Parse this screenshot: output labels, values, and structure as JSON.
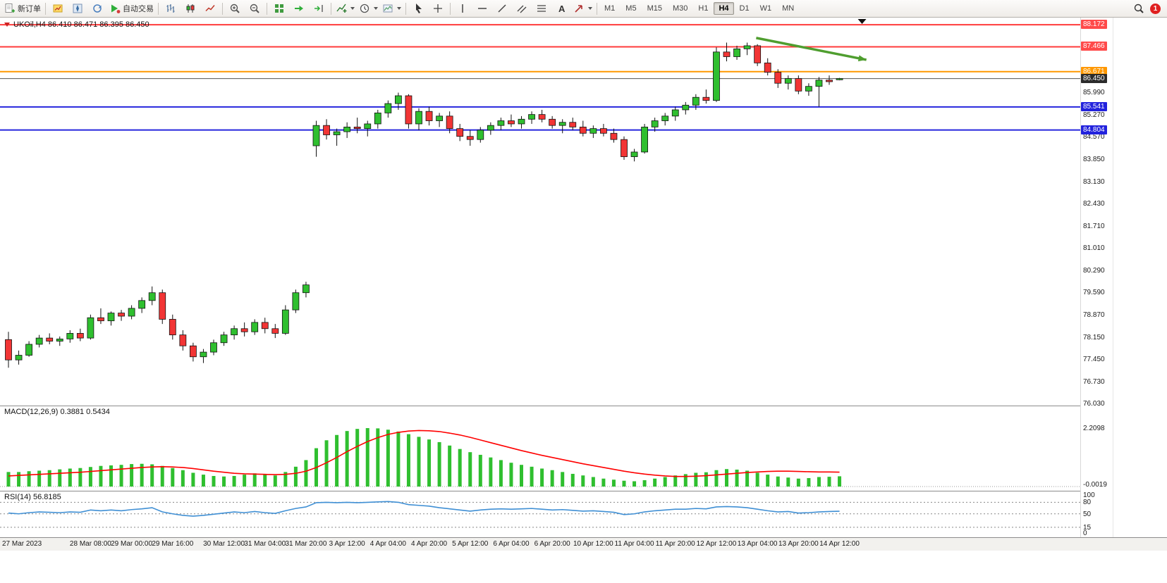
{
  "toolbar": {
    "new_order_label": "新订单",
    "auto_trading_label": "自动交易",
    "notification_count": "1",
    "timeframes": {
      "items": [
        "M1",
        "M5",
        "M15",
        "M30",
        "H1",
        "H4",
        "D1",
        "W1",
        "MN"
      ],
      "active": "H4"
    },
    "icons": {
      "new_order": "document-plus",
      "market_watch": "yellow-chart-box",
      "navigator": "compass-box",
      "refresh": "circle-arrow",
      "auto_trading": "green-play-triangle",
      "bar_chart": "hilo-bars",
      "candlestick_chart": "two-candles",
      "line_chart": "zigzag-line",
      "zoom_in": "magnifier-plus",
      "zoom_out": "magnifier-minus",
      "tile_windows": "green-grid-2x2",
      "auto_scroll": "green-right-arrow",
      "chart_shift": "green-arrow-to-bar",
      "indicators": "green-plus-over-line",
      "periods": "clock",
      "templates": "picture",
      "cursor": "pointer-arrow",
      "crosshair": "plus-cross",
      "vertical_line": "v-line",
      "horizontal_line": "h-line",
      "trendline": "diagonal-line",
      "equidistant_channel": "double-diagonal",
      "fibonacci": "stacked-lines",
      "text": "letter-A",
      "arrows": "red-arrow",
      "search": "magnifier"
    }
  },
  "chart": {
    "title": "UKOil,H4 86.410 86.471 86.395 86.450",
    "symbol": "UKOil",
    "period": "H4",
    "ohlc": {
      "open": "86.410",
      "high": "86.471",
      "low": "86.395",
      "close": "86.450"
    }
  },
  "macd": {
    "title": "MACD(12,26,9) 0.3881 0.5434",
    "axis_max": "2.2098",
    "axis_min": "-0.0019"
  },
  "rsi": {
    "title": "RSI(14) 56.8185",
    "axis_ticks": [
      "100",
      "80",
      "50",
      "15",
      "0"
    ]
  },
  "chart_data": {
    "type": "candlestick",
    "symbol": "UKOil",
    "timeframe": "H4",
    "ylim": [
      75.99,
      88.4
    ],
    "colors": {
      "bull": "#2fbf2f",
      "bear": "#f23535",
      "macd_hist": "#2fbf2f",
      "macd_signal": "#ff0000",
      "rsi_line": "#3f8fd4",
      "wick": "#111111",
      "annotation_arrow": "#4f9e2f"
    },
    "price_axis_ticks": [
      "85.990",
      "85.270",
      "84.570",
      "83.850",
      "83.130",
      "82.430",
      "81.710",
      "81.010",
      "80.290",
      "79.590",
      "78.870",
      "78.150",
      "77.450",
      "76.730",
      "76.030"
    ],
    "level_lines": [
      {
        "price": 88.172,
        "label": "88.172",
        "color": "#ff3b3b",
        "badge_color": "#ff4a4a",
        "width": 2
      },
      {
        "price": 87.466,
        "label": "87.466",
        "color": "#ff3b3b",
        "badge_color": "#ff4a4a",
        "width": 2
      },
      {
        "price": 86.671,
        "label": "86.671",
        "color": "#ff9800",
        "badge_color": "#ff9800",
        "width": 2
      },
      {
        "price": 86.45,
        "label": "86.450",
        "color": "#555555",
        "badge_color": "#2b2b2b",
        "width": 1
      },
      {
        "price": 85.541,
        "label": "85.541",
        "color": "#2626dd",
        "badge_color": "#2222dd",
        "width": 2
      },
      {
        "price": 84.804,
        "label": "84.804",
        "color": "#2626dd",
        "badge_color": "#2222dd",
        "width": 2
      }
    ],
    "x_labels": [
      {
        "i": 0,
        "t": "27 Mar 2023"
      },
      {
        "i": 8,
        "t": "28 Mar 08:00"
      },
      {
        "i": 12,
        "t": "29 Mar 00:00"
      },
      {
        "i": 16,
        "t": "29 Mar 16:00"
      },
      {
        "i": 21,
        "t": "30 Mar 12:00"
      },
      {
        "i": 25,
        "t": "31 Mar 04:00"
      },
      {
        "i": 29,
        "t": "31 Mar 20:00"
      },
      {
        "i": 33,
        "t": "3 Apr 12:00"
      },
      {
        "i": 37,
        "t": "4 Apr 04:00"
      },
      {
        "i": 41,
        "t": "4 Apr 20:00"
      },
      {
        "i": 45,
        "t": "5 Apr 12:00"
      },
      {
        "i": 49,
        "t": "6 Apr 04:00"
      },
      {
        "i": 53,
        "t": "6 Apr 20:00"
      },
      {
        "i": 57,
        "t": "10 Apr 12:00"
      },
      {
        "i": 61,
        "t": "11 Apr 04:00"
      },
      {
        "i": 65,
        "t": "11 Apr 20:00"
      },
      {
        "i": 69,
        "t": "12 Apr 12:00"
      },
      {
        "i": 73,
        "t": "13 Apr 04:00"
      },
      {
        "i": 77,
        "t": "13 Apr 20:00"
      },
      {
        "i": 81,
        "t": "14 Apr 12:00"
      }
    ],
    "candles": [
      [
        78.1,
        78.35,
        77.2,
        77.45
      ],
      [
        77.45,
        77.75,
        77.3,
        77.6
      ],
      [
        77.6,
        78.05,
        77.55,
        77.95
      ],
      [
        77.95,
        78.25,
        77.85,
        78.15
      ],
      [
        78.15,
        78.3,
        77.95,
        78.05
      ],
      [
        78.05,
        78.2,
        77.9,
        78.12
      ],
      [
        78.12,
        78.4,
        78.0,
        78.3
      ],
      [
        78.3,
        78.45,
        78.05,
        78.15
      ],
      [
        78.15,
        78.9,
        78.1,
        78.8
      ],
      [
        78.8,
        79.1,
        78.6,
        78.7
      ],
      [
        78.7,
        79.0,
        78.55,
        78.95
      ],
      [
        78.95,
        79.05,
        78.7,
        78.85
      ],
      [
        78.85,
        79.2,
        78.75,
        79.1
      ],
      [
        79.1,
        79.45,
        78.95,
        79.35
      ],
      [
        79.35,
        79.8,
        79.2,
        79.6
      ],
      [
        79.6,
        79.7,
        78.6,
        78.75
      ],
      [
        78.75,
        78.9,
        78.1,
        78.25
      ],
      [
        78.25,
        78.4,
        77.75,
        77.9
      ],
      [
        77.9,
        78.0,
        77.4,
        77.55
      ],
      [
        77.55,
        77.8,
        77.35,
        77.7
      ],
      [
        77.7,
        78.1,
        77.6,
        78.0
      ],
      [
        78.0,
        78.35,
        77.9,
        78.25
      ],
      [
        78.25,
        78.55,
        78.1,
        78.45
      ],
      [
        78.45,
        78.65,
        78.2,
        78.35
      ],
      [
        78.35,
        78.75,
        78.25,
        78.65
      ],
      [
        78.65,
        78.8,
        78.3,
        78.45
      ],
      [
        78.45,
        78.6,
        78.15,
        78.3
      ],
      [
        78.3,
        79.2,
        78.25,
        79.05
      ],
      [
        79.05,
        79.7,
        78.95,
        79.6
      ],
      [
        79.6,
        79.95,
        79.45,
        79.85
      ],
      [
        84.3,
        85.1,
        83.95,
        84.95
      ],
      [
        84.95,
        85.15,
        84.5,
        84.65
      ],
      [
        84.65,
        84.85,
        84.3,
        84.75
      ],
      [
        84.75,
        85.05,
        84.55,
        84.9
      ],
      [
        84.9,
        85.2,
        84.7,
        84.85
      ],
      [
        84.85,
        85.1,
        84.6,
        85.0
      ],
      [
        85.0,
        85.45,
        84.85,
        85.35
      ],
      [
        85.35,
        85.75,
        85.2,
        85.65
      ],
      [
        85.65,
        86.0,
        85.45,
        85.9
      ],
      [
        85.9,
        85.95,
        84.85,
        85.0
      ],
      [
        85.0,
        85.5,
        84.8,
        85.4
      ],
      [
        85.4,
        85.55,
        84.95,
        85.1
      ],
      [
        85.1,
        85.35,
        84.9,
        85.25
      ],
      [
        85.25,
        85.4,
        84.7,
        84.85
      ],
      [
        84.85,
        85.0,
        84.45,
        84.6
      ],
      [
        84.6,
        84.8,
        84.3,
        84.5
      ],
      [
        84.5,
        84.9,
        84.4,
        84.8
      ],
      [
        84.8,
        85.05,
        84.65,
        84.95
      ],
      [
        84.95,
        85.2,
        84.8,
        85.1
      ],
      [
        85.1,
        85.3,
        84.9,
        85.0
      ],
      [
        85.0,
        85.25,
        84.85,
        85.15
      ],
      [
        85.15,
        85.4,
        85.0,
        85.3
      ],
      [
        85.3,
        85.45,
        85.05,
        85.15
      ],
      [
        85.15,
        85.25,
        84.85,
        84.95
      ],
      [
        84.95,
        85.15,
        84.7,
        85.05
      ],
      [
        85.05,
        85.2,
        84.8,
        84.9
      ],
      [
        84.9,
        85.1,
        84.6,
        84.7
      ],
      [
        84.7,
        84.95,
        84.55,
        84.85
      ],
      [
        84.85,
        85.0,
        84.6,
        84.7
      ],
      [
        84.7,
        84.85,
        84.4,
        84.5
      ],
      [
        84.5,
        84.6,
        83.85,
        83.95
      ],
      [
        83.95,
        84.2,
        83.8,
        84.1
      ],
      [
        84.1,
        85.0,
        84.05,
        84.9
      ],
      [
        84.9,
        85.2,
        84.75,
        85.1
      ],
      [
        85.1,
        85.35,
        84.95,
        85.25
      ],
      [
        85.25,
        85.55,
        85.1,
        85.45
      ],
      [
        85.45,
        85.7,
        85.3,
        85.6
      ],
      [
        85.6,
        85.95,
        85.45,
        85.85
      ],
      [
        85.85,
        86.1,
        85.65,
        85.75
      ],
      [
        85.75,
        87.45,
        85.7,
        87.3
      ],
      [
        87.3,
        87.6,
        87.0,
        87.15
      ],
      [
        87.15,
        87.5,
        87.05,
        87.4
      ],
      [
        87.4,
        87.6,
        87.2,
        87.5
      ],
      [
        87.5,
        87.55,
        86.85,
        86.95
      ],
      [
        86.95,
        87.1,
        86.55,
        86.65
      ],
      [
        86.65,
        86.75,
        86.15,
        86.3
      ],
      [
        86.3,
        86.55,
        86.1,
        86.45
      ],
      [
        86.45,
        86.55,
        85.95,
        86.05
      ],
      [
        86.05,
        86.3,
        85.9,
        86.2
      ],
      [
        86.2,
        86.5,
        85.55,
        86.4
      ],
      [
        86.4,
        86.55,
        86.25,
        86.35
      ],
      [
        86.41,
        86.471,
        86.395,
        86.45
      ]
    ],
    "indicators": {
      "macd": {
        "params": "12,26,9",
        "current_main": "0.3881",
        "current_signal": "0.5434",
        "axis_max": "2.2098",
        "axis_min": "-0.0019",
        "histogram": [
          0.55,
          0.55,
          0.58,
          0.6,
          0.62,
          0.65,
          0.68,
          0.7,
          0.74,
          0.78,
          0.8,
          0.82,
          0.85,
          0.86,
          0.84,
          0.78,
          0.7,
          0.62,
          0.52,
          0.45,
          0.4,
          0.38,
          0.4,
          0.45,
          0.5,
          0.46,
          0.42,
          0.55,
          0.75,
          1.0,
          1.45,
          1.75,
          1.95,
          2.1,
          2.18,
          2.21,
          2.2,
          2.15,
          2.08,
          1.98,
          1.88,
          1.78,
          1.68,
          1.55,
          1.42,
          1.3,
          1.2,
          1.1,
          1.0,
          0.9,
          0.82,
          0.75,
          0.68,
          0.62,
          0.55,
          0.48,
          0.42,
          0.36,
          0.3,
          0.26,
          0.22,
          0.2,
          0.24,
          0.3,
          0.36,
          0.42,
          0.47,
          0.52,
          0.54,
          0.62,
          0.66,
          0.64,
          0.6,
          0.52,
          0.45,
          0.38,
          0.34,
          0.3,
          0.32,
          0.36,
          0.37,
          0.3881
        ],
        "signal": [
          0.4,
          0.42,
          0.44,
          0.46,
          0.48,
          0.5,
          0.52,
          0.54,
          0.57,
          0.6,
          0.63,
          0.66,
          0.69,
          0.72,
          0.74,
          0.75,
          0.74,
          0.72,
          0.68,
          0.63,
          0.58,
          0.54,
          0.5,
          0.48,
          0.47,
          0.46,
          0.45,
          0.46,
          0.5,
          0.58,
          0.72,
          0.9,
          1.1,
          1.32,
          1.52,
          1.7,
          1.85,
          1.97,
          2.05,
          2.1,
          2.12,
          2.11,
          2.08,
          2.02,
          1.95,
          1.86,
          1.76,
          1.66,
          1.56,
          1.46,
          1.36,
          1.27,
          1.18,
          1.1,
          1.02,
          0.94,
          0.86,
          0.79,
          0.72,
          0.65,
          0.58,
          0.52,
          0.47,
          0.43,
          0.4,
          0.38,
          0.38,
          0.39,
          0.41,
          0.44,
          0.47,
          0.5,
          0.53,
          0.55,
          0.57,
          0.58,
          0.58,
          0.57,
          0.56,
          0.55,
          0.55,
          0.5434
        ]
      },
      "rsi": {
        "period": 14,
        "current": "56.8185",
        "levels": [
          80,
          50,
          15
        ],
        "values": [
          52,
          50,
          53,
          55,
          54,
          53,
          55,
          54,
          60,
          58,
          60,
          58,
          61,
          63,
          66,
          55,
          50,
          46,
          44,
          46,
          49,
          52,
          55,
          53,
          56,
          53,
          51,
          58,
          64,
          68,
          79,
          80,
          79,
          80,
          79,
          80,
          81,
          82,
          80,
          74,
          72,
          70,
          66,
          63,
          60,
          57,
          60,
          62,
          63,
          62,
          63,
          64,
          62,
          60,
          61,
          59,
          57,
          58,
          56,
          54,
          48,
          50,
          55,
          58,
          60,
          62,
          62,
          64,
          63,
          68,
          69,
          68,
          66,
          62,
          58,
          55,
          56,
          52,
          53,
          55,
          56,
          56.8185
        ]
      }
    },
    "annotations": [
      {
        "type": "trend-arrow",
        "x1_frac": 0.7,
        "x2_frac": 0.802,
        "price1": 87.75,
        "price2": 87.05,
        "color": "#4f9e2f"
      },
      {
        "type": "marker-down",
        "x_frac": 0.798,
        "color": "#111111"
      }
    ]
  }
}
